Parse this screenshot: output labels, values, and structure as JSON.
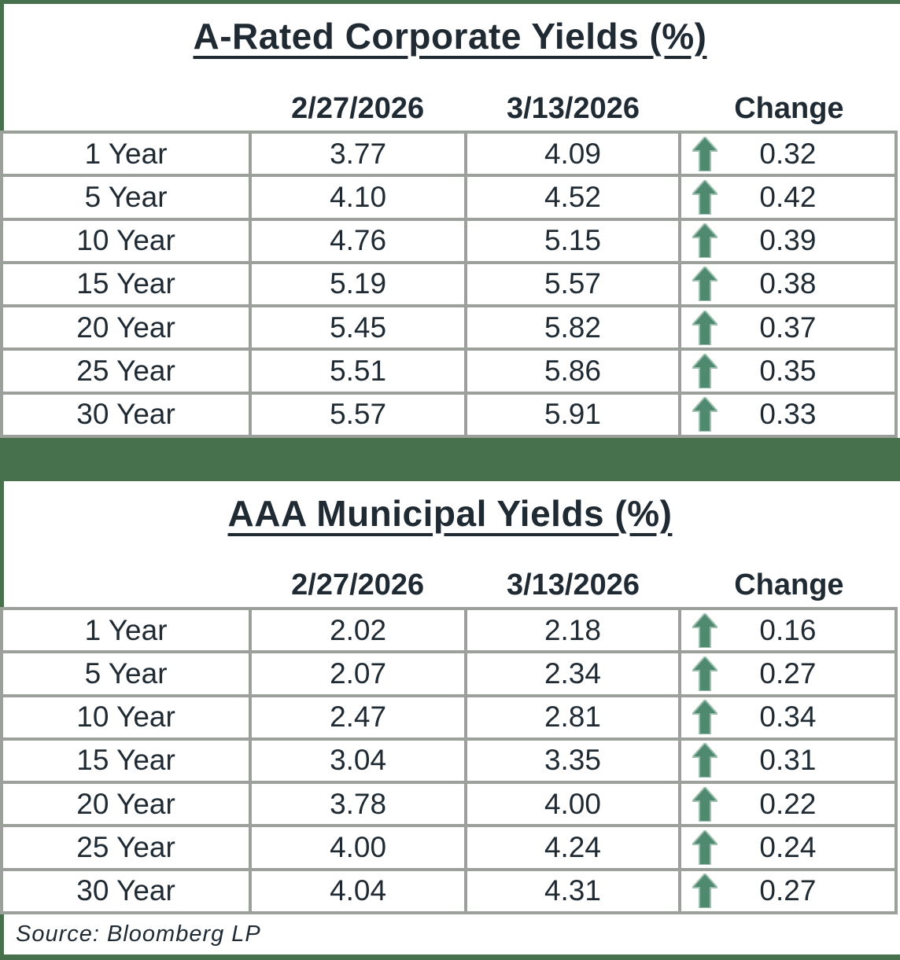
{
  "colors": {
    "frame_green": "#47704d",
    "arrow_green": "#4f8a70",
    "arrow_halo": "#9dbfae",
    "border_gray": "#9ba09b",
    "text_dark": "#1f2a33"
  },
  "footer": {
    "source": "Source: Bloomberg LP"
  },
  "arrow_icon": "up-arrow",
  "chart_data": [
    {
      "type": "table",
      "title": "A-Rated Corporate Yields (%)",
      "columns": [
        "2/27/2026",
        "3/13/2026",
        "Change"
      ],
      "rows": [
        {
          "term": "1 Year",
          "prev": "3.77",
          "curr": "4.09",
          "change": "0.32",
          "direction": "up"
        },
        {
          "term": "5 Year",
          "prev": "4.10",
          "curr": "4.52",
          "change": "0.42",
          "direction": "up"
        },
        {
          "term": "10 Year",
          "prev": "4.76",
          "curr": "5.15",
          "change": "0.39",
          "direction": "up"
        },
        {
          "term": "15 Year",
          "prev": "5.19",
          "curr": "5.57",
          "change": "0.38",
          "direction": "up"
        },
        {
          "term": "20 Year",
          "prev": "5.45",
          "curr": "5.82",
          "change": "0.37",
          "direction": "up"
        },
        {
          "term": "25 Year",
          "prev": "5.51",
          "curr": "5.86",
          "change": "0.35",
          "direction": "up"
        },
        {
          "term": "30 Year",
          "prev": "5.57",
          "curr": "5.91",
          "change": "0.33",
          "direction": "up"
        }
      ]
    },
    {
      "type": "table",
      "title": "AAA Municipal Yields (%)",
      "columns": [
        "2/27/2026",
        "3/13/2026",
        "Change"
      ],
      "rows": [
        {
          "term": "1 Year",
          "prev": "2.02",
          "curr": "2.18",
          "change": "0.16",
          "direction": "up"
        },
        {
          "term": "5 Year",
          "prev": "2.07",
          "curr": "2.34",
          "change": "0.27",
          "direction": "up"
        },
        {
          "term": "10 Year",
          "prev": "2.47",
          "curr": "2.81",
          "change": "0.34",
          "direction": "up"
        },
        {
          "term": "15 Year",
          "prev": "3.04",
          "curr": "3.35",
          "change": "0.31",
          "direction": "up"
        },
        {
          "term": "20 Year",
          "prev": "3.78",
          "curr": "4.00",
          "change": "0.22",
          "direction": "up"
        },
        {
          "term": "25 Year",
          "prev": "4.00",
          "curr": "4.24",
          "change": "0.24",
          "direction": "up"
        },
        {
          "term": "30 Year",
          "prev": "4.04",
          "curr": "4.31",
          "change": "0.27",
          "direction": "up"
        }
      ]
    }
  ]
}
